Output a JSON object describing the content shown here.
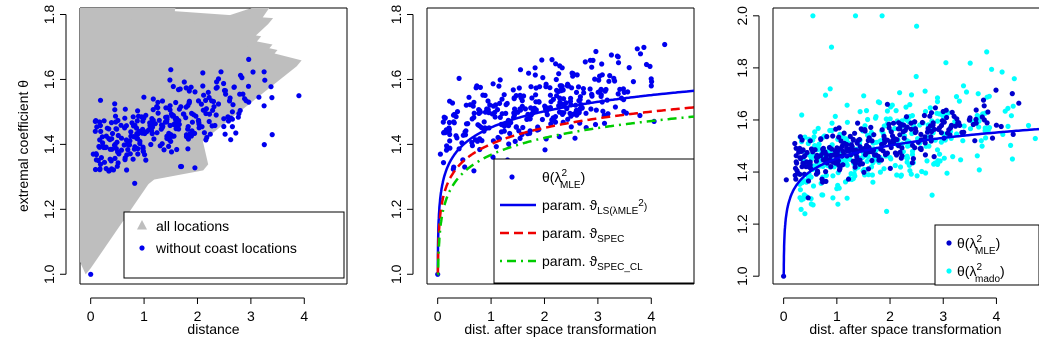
{
  "chart_data": [
    {
      "type": "scatter",
      "xlabel": "distance",
      "ylabel": "extremal coefficient  θ",
      "xlim": [
        -0.2,
        4.8
      ],
      "ylim": [
        0.97,
        1.82
      ],
      "xticks": [
        "0",
        "1",
        "2",
        "3",
        "4"
      ],
      "yticks": [
        "1.0",
        "1.2",
        "1.4",
        "1.6",
        "1.8"
      ],
      "legend": {
        "position": "bottom-right",
        "entries": [
          "all locations",
          "without coast locations"
        ]
      },
      "series": [
        {
          "name": "all locations",
          "marker": "triangle",
          "color": "#bebebe",
          "size": 190,
          "xrange": [
            0.05,
            3.6
          ],
          "center": 1.55,
          "slope": 0.06,
          "anchors": [
            [
              0,
              1.0
            ],
            [
              0.1,
              1.36
            ],
            [
              0.2,
              1.38
            ],
            [
              2.05,
              1.78
            ],
            [
              1.7,
              1.75
            ],
            [
              3.95,
              1.64
            ],
            [
              3.55,
              1.59
            ],
            [
              0.5,
              1.33
            ],
            [
              1.0,
              1.3
            ],
            [
              2.2,
              1.32
            ]
          ]
        },
        {
          "name": "without coast locations",
          "marker": "circle",
          "color": "#0000ee",
          "size": 300,
          "xrange": [
            0.08,
            3.6
          ],
          "center": 1.46,
          "slope": 0.06,
          "anchors": [
            [
              0,
              1.0
            ],
            [
              0.05,
              1.37
            ],
            [
              3.9,
              1.55
            ],
            [
              3.4,
              1.43
            ],
            [
              1.5,
              1.63
            ],
            [
              2.1,
              1.62
            ]
          ]
        }
      ]
    },
    {
      "type": "scatter",
      "xlabel": "dist. after space transformation",
      "ylabel": "",
      "xlim": [
        -0.2,
        4.8
      ],
      "ylim": [
        0.97,
        1.82
      ],
      "xticks": [
        "0",
        "1",
        "2",
        "3",
        "4"
      ],
      "yticks": [
        "1.0",
        "1.2",
        "1.4",
        "1.6",
        "1.8"
      ],
      "legend": {
        "position": "bottom-right",
        "entries": [
          {
            "main": "θ(λ",
            "sup": "2",
            "sub": "MLE",
            "end": ")"
          },
          {
            "main": "param. ϑ",
            "sub": "LS(λ",
            "sub2": "MLE",
            "sup": "2",
            "end": ")"
          },
          {
            "main": "param. ϑ",
            "sub": "SPEC"
          },
          {
            "main": "param. ϑ",
            "sub": "SPEC_CL"
          }
        ]
      },
      "series": [
        {
          "name": "θ(λ²MLE)",
          "marker": "circle",
          "color": "#0000ee",
          "size": 320,
          "xrange": [
            0.1,
            4.4
          ],
          "center": 1.49,
          "slope": 0.045,
          "anchors": [
            [
              0,
              1.0
            ],
            [
              0.05,
              1.37
            ],
            [
              1.95,
              1.66
            ],
            [
              1.55,
              1.63
            ],
            [
              4.0,
              1.58
            ],
            [
              0.3,
              1.33
            ]
          ]
        }
      ],
      "curves": [
        {
          "name": "param. ϑLS(λ²MLE)",
          "color": "#0000ee",
          "style": "solid",
          "width": 2.5,
          "a": 1.452,
          "b": 0.072,
          "c": 0.26
        },
        {
          "name": "param. ϑSPEC",
          "color": "#ee0000",
          "style": "dashed",
          "width": 2.5,
          "a": 1.401,
          "b": 0.072,
          "c": 0.28
        },
        {
          "name": "param. ϑSPEC_CL",
          "color": "#00cc00",
          "style": "dotdash",
          "width": 2.5,
          "a": 1.368,
          "b": 0.075,
          "c": 0.3
        }
      ]
    },
    {
      "type": "scatter",
      "xlabel": "dist. after space transformation",
      "ylabel": "",
      "xlim": [
        -0.2,
        4.8
      ],
      "ylim": [
        0.97,
        2.03
      ],
      "xticks": [
        "0",
        "1",
        "2",
        "3",
        "4"
      ],
      "yticks": [
        "1.0",
        "1.2",
        "1.4",
        "1.6",
        "1.8",
        "2.0"
      ],
      "legend": {
        "position": "bottom-right",
        "entries": [
          {
            "main": "θ(λ",
            "sup": "2",
            "sub": "MLE",
            "end": ")"
          },
          {
            "main": "θ(λ",
            "sup": "2",
            "sub": "mado",
            "end": ")"
          }
        ]
      },
      "series": [
        {
          "name": "θ(λ²MADO)",
          "marker": "circle",
          "color": "#00ffff",
          "size": 320,
          "xrange": [
            0.3,
            4.8
          ],
          "center": 1.47,
          "slope": 0.05,
          "spread": 0.09,
          "anchors": [
            [
              0.55,
              2.0
            ],
            [
              1.35,
              2.0
            ],
            [
              1.85,
              2.0
            ],
            [
              2.5,
              1.96
            ],
            [
              0.9,
              1.88
            ],
            [
              3.05,
              1.82
            ],
            [
              0.4,
              1.24
            ],
            [
              4.3,
              1.45
            ]
          ]
        },
        {
          "name": "θ(λ²MLE)",
          "marker": "circle",
          "color": "#0000cc",
          "size": 300,
          "xrange": [
            0.2,
            4.5
          ],
          "center": 1.49,
          "slope": 0.045,
          "spread": 0.045,
          "anchors": [
            [
              0,
              1.0
            ],
            [
              0.05,
              1.37
            ],
            [
              1.95,
              1.66
            ],
            [
              4.0,
              1.58
            ]
          ]
        }
      ],
      "curves": [
        {
          "name": "fit",
          "color": "#0000ee",
          "style": "solid",
          "width": 2.5,
          "a": 1.452,
          "b": 0.072,
          "c": 0.26
        }
      ]
    }
  ]
}
